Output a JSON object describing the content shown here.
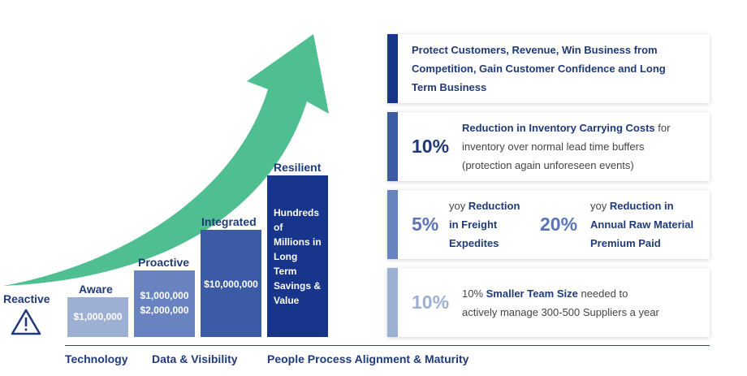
{
  "stages": {
    "reactive": {
      "label": "Reactive"
    },
    "aware": {
      "label": "Aware",
      "value": "$1,000,000",
      "color": "#9dafd3"
    },
    "proactive": {
      "label": "Proactive",
      "value_1": "$1,000,000",
      "value_2": "$2,000,000",
      "color": "#6883c0"
    },
    "integrated": {
      "label": "Integrated",
      "value": "$10,000,000",
      "color": "#3c5ba6"
    },
    "resilient": {
      "label": "Resilient",
      "lines": [
        "Hundreds",
        "of",
        "Millions in",
        "Long",
        "Term",
        "Savings &",
        "Value"
      ],
      "color": "#17358a"
    }
  },
  "axis": {
    "technology": "Technology",
    "data_visibility": "Data & Visibility",
    "people_process": "People Process Alignment & Maturity"
  },
  "arrow": {
    "color": "#4fbf91",
    "icon": "warning-triangle-icon"
  },
  "panels": {
    "protect": {
      "lines": [
        "Protect Customers, Revenue, Win Business from",
        "Competition, Gain Customer Confidence and Long",
        "Term Business"
      ],
      "accent": "#17358a"
    },
    "inventory": {
      "big": "10%",
      "strong": "Reduction in Inventory Carrying Costs",
      "rest_1": " for",
      "line_2": "inventory over normal lead time buffers",
      "line_3": "(protection again unforeseen events)",
      "accent": "#3c5ba6",
      "big_color": "#1f3a7a"
    },
    "freight": {
      "big_1": "5%",
      "pre_1": "yoy ",
      "strong_1a": "Reduction",
      "strong_1b": "in Freight",
      "strong_1c": "Expedites",
      "big_2": "20%",
      "pre_2": "yoy ",
      "strong_2a": "Reduction",
      "rest_2a": " in",
      "strong_2b": "Annual Raw Material",
      "strong_2c": "Premium Paid",
      "accent": "#6883c0",
      "big_color": "#5a74b6"
    },
    "team": {
      "big": "10%",
      "pre": "10% ",
      "strong": "Smaller Team Size",
      "rest_1": " needed to",
      "line_2": "actively manage 300-500 Suppliers a year",
      "accent": "#9dafd3",
      "big_color": "#9dafd3"
    }
  }
}
